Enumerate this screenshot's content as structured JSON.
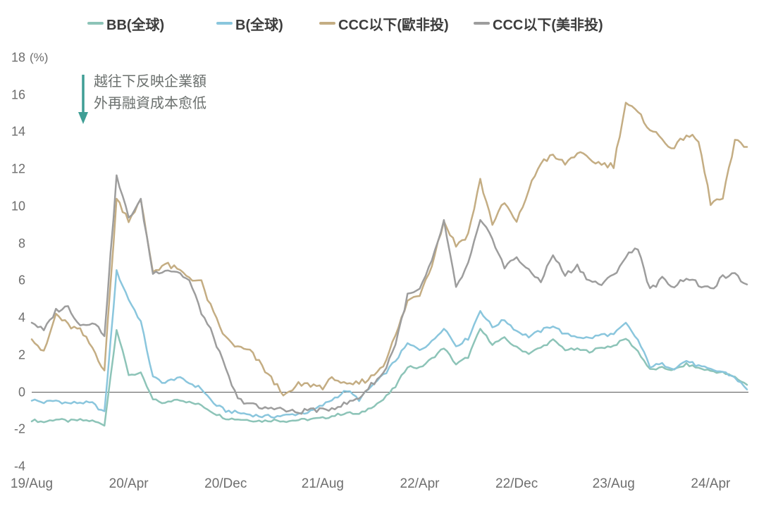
{
  "legend": [
    {
      "label": "BB(全球)",
      "color": "#8dc4b8"
    },
    {
      "label": "B(全球)",
      "color": "#8ac6dd"
    },
    {
      "label": "CCC以下(歐非投)",
      "color": "#c4ad83"
    },
    {
      "label": "CCC以下(美非投)",
      "color": "#9d9d9d"
    }
  ],
  "annotation": {
    "line1": "越往下反映企業額",
    "line2": "外再融資成本愈低",
    "arrow_color": "#3f9e95"
  },
  "axis": {
    "unit_label": "(%)",
    "y_ticks": [
      18,
      16,
      14,
      12,
      10,
      8,
      6,
      4,
      2,
      0,
      -2,
      -4
    ],
    "x_tick_labels": [
      "19/Aug",
      "20/Apr",
      "20/Dec",
      "21/Aug",
      "22/Apr",
      "22/Dec",
      "23/Aug",
      "24/Apr"
    ],
    "x_tick_months": [
      0,
      8,
      16,
      24,
      32,
      40,
      48,
      56
    ],
    "zero_line_color": "#595959",
    "text_color": "#6e6e6e"
  },
  "chart_data": {
    "type": "line",
    "title": "",
    "xlabel": "",
    "ylabel": "(%)",
    "x_unit": "month",
    "x_start": "2019-08",
    "x_end": "2024-07",
    "ylim": [
      -4,
      18
    ],
    "grid": false,
    "legend_position": "top",
    "x_tick_labels": [
      "19/Aug",
      "20/Apr",
      "20/Dec",
      "21/Aug",
      "22/Apr",
      "22/Dec",
      "23/Aug",
      "24/Apr"
    ],
    "series": [
      {
        "name": "BB(全球)",
        "color": "#8dc4b8",
        "jitter": 0.07,
        "values": [
          -1.5,
          -1.6,
          -1.45,
          -1.55,
          -1.5,
          -1.55,
          -1.75,
          3.4,
          0.95,
          1.0,
          -0.4,
          -0.6,
          -0.35,
          -0.55,
          -0.7,
          -1.1,
          -1.4,
          -1.45,
          -1.5,
          -1.55,
          -1.5,
          -1.55,
          -1.5,
          -1.45,
          -1.4,
          -1.25,
          -1.1,
          -1.2,
          -0.8,
          -0.4,
          0.3,
          1.4,
          1.3,
          1.8,
          2.4,
          1.5,
          1.9,
          3.4,
          2.6,
          2.9,
          2.4,
          2.1,
          2.4,
          2.8,
          2.3,
          2.3,
          2.2,
          2.4,
          2.5,
          2.9,
          2.2,
          1.2,
          1.3,
          1.2,
          1.5,
          1.3,
          1.15,
          1.05,
          0.8,
          0.4
        ]
      },
      {
        "name": "B(全球)",
        "color": "#8ac6dd",
        "jitter": 0.09,
        "values": [
          -0.4,
          -0.55,
          -0.45,
          -0.6,
          -0.55,
          -0.6,
          -1.1,
          6.5,
          5.0,
          3.8,
          0.8,
          0.5,
          0.8,
          0.5,
          0.2,
          -0.6,
          -1.0,
          -1.1,
          -1.2,
          -1.3,
          -1.3,
          -1.25,
          -1.15,
          -1.05,
          -0.7,
          -0.3,
          0.1,
          -0.4,
          0.3,
          0.9,
          1.7,
          2.6,
          2.3,
          2.7,
          3.5,
          2.5,
          2.9,
          4.4,
          3.5,
          3.9,
          3.3,
          3.0,
          3.3,
          3.6,
          3.1,
          3.0,
          2.9,
          3.1,
          3.1,
          3.7,
          2.8,
          1.4,
          1.5,
          1.3,
          1.7,
          1.4,
          1.2,
          1.1,
          0.8,
          0.15
        ]
      },
      {
        "name": "CCC以下(歐非投)",
        "color": "#c4ad83",
        "jitter": 0.16,
        "values": [
          3.0,
          2.1,
          4.2,
          3.6,
          3.3,
          2.4,
          1.2,
          10.4,
          9.3,
          10.3,
          6.5,
          6.9,
          6.6,
          6.2,
          5.9,
          4.2,
          2.9,
          2.4,
          2.2,
          1.4,
          0.5,
          -0.2,
          0.4,
          0.4,
          0.3,
          0.8,
          0.3,
          0.5,
          0.8,
          1.5,
          3.0,
          4.9,
          5.3,
          6.9,
          9.2,
          7.9,
          8.5,
          11.4,
          9.1,
          10.2,
          9.1,
          10.9,
          12.4,
          12.7,
          12.3,
          12.9,
          12.5,
          12.3,
          12.2,
          15.6,
          15.0,
          14.2,
          13.6,
          13.1,
          13.9,
          13.5,
          10.2,
          10.4,
          13.5,
          13.2
        ]
      },
      {
        "name": "CCC以下(美非投)",
        "color": "#9d9d9d",
        "jitter": 0.13,
        "values": [
          3.8,
          3.3,
          4.4,
          4.6,
          3.6,
          3.8,
          3.1,
          11.6,
          9.4,
          10.3,
          6.4,
          6.6,
          6.5,
          6.0,
          4.3,
          3.0,
          1.2,
          -0.4,
          -0.6,
          -0.9,
          -0.8,
          -1.0,
          -1.1,
          -0.9,
          -1.0,
          -0.8,
          -0.6,
          -0.3,
          0.4,
          1.0,
          2.6,
          5.2,
          5.5,
          7.0,
          9.2,
          5.6,
          6.9,
          9.2,
          8.3,
          6.7,
          7.3,
          6.5,
          6.0,
          7.4,
          6.3,
          6.8,
          6.0,
          5.8,
          6.3,
          7.3,
          7.8,
          5.5,
          6.1,
          5.7,
          6.2,
          5.8,
          5.5,
          6.2,
          6.3,
          5.8
        ]
      }
    ]
  }
}
